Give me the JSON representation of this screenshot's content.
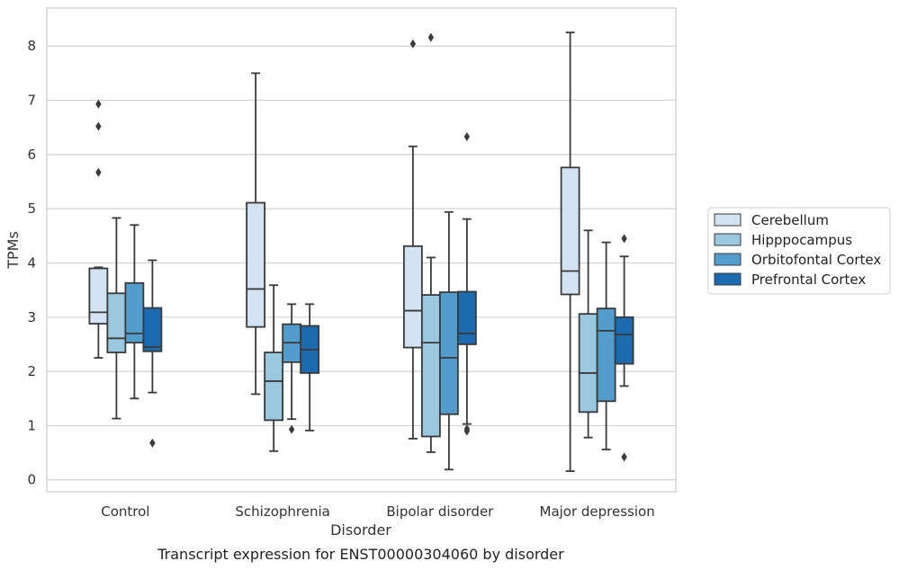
{
  "chart_data": {
    "type": "box",
    "caption": "Transcript expression for ENST00000304060 by disorder",
    "xlabel": "Disorder",
    "ylabel": "TPMs",
    "ylim": [
      -0.22,
      8.7
    ],
    "yticks": [
      0,
      1,
      2,
      3,
      4,
      5,
      6,
      7,
      8
    ],
    "grid": true,
    "legend_position": "right",
    "categories": [
      "Control",
      "Schizophrenia",
      "Bipolar disorder",
      "Major depression"
    ],
    "series": [
      {
        "name": "Cerebellum",
        "color": "#d3e3f3",
        "boxes": [
          {
            "whislo": 2.25,
            "q1": 2.88,
            "med": 3.09,
            "q3": 3.9,
            "whishi": 3.92,
            "fliers": [
              5.67,
              6.52,
              6.93
            ]
          },
          {
            "whislo": 1.58,
            "q1": 2.82,
            "med": 3.52,
            "q3": 5.11,
            "whishi": 7.5,
            "fliers": []
          },
          {
            "whislo": 0.76,
            "q1": 2.44,
            "med": 3.12,
            "q3": 4.31,
            "whishi": 6.15,
            "fliers": [
              8.04
            ]
          },
          {
            "whislo": 0.16,
            "q1": 3.42,
            "med": 3.85,
            "q3": 5.76,
            "whishi": 8.25,
            "fliers": []
          }
        ]
      },
      {
        "name": "Hipppocampus",
        "color": "#9ac8e0",
        "boxes": [
          {
            "whislo": 1.13,
            "q1": 2.35,
            "med": 2.61,
            "q3": 3.44,
            "whishi": 4.83,
            "fliers": []
          },
          {
            "whislo": 0.53,
            "q1": 1.1,
            "med": 1.82,
            "q3": 2.35,
            "whishi": 3.59,
            "fliers": []
          },
          {
            "whislo": 0.51,
            "q1": 0.8,
            "med": 2.53,
            "q3": 3.41,
            "whishi": 4.1,
            "fliers": [
              8.16
            ]
          },
          {
            "whislo": 0.78,
            "q1": 1.25,
            "med": 1.97,
            "q3": 3.06,
            "whishi": 4.6,
            "fliers": []
          }
        ]
      },
      {
        "name": "Orbitofontal Cortex",
        "color": "#529dcc",
        "boxes": [
          {
            "whislo": 1.5,
            "q1": 2.53,
            "med": 2.7,
            "q3": 3.63,
            "whishi": 4.7,
            "fliers": []
          },
          {
            "whislo": 1.12,
            "q1": 2.17,
            "med": 2.53,
            "q3": 2.87,
            "whishi": 3.24,
            "fliers": [
              0.93
            ]
          },
          {
            "whislo": 0.19,
            "q1": 1.21,
            "med": 2.25,
            "q3": 3.46,
            "whishi": 4.94,
            "fliers": []
          },
          {
            "whislo": 0.56,
            "q1": 1.45,
            "med": 2.75,
            "q3": 3.16,
            "whishi": 4.38,
            "fliers": []
          }
        ]
      },
      {
        "name": "Prefrontal Cortex",
        "color": "#1c6aaf",
        "boxes": [
          {
            "whislo": 1.61,
            "q1": 2.37,
            "med": 2.45,
            "q3": 3.17,
            "whishi": 4.05,
            "fliers": [
              0.68
            ]
          },
          {
            "whislo": 0.91,
            "q1": 1.97,
            "med": 2.4,
            "q3": 2.84,
            "whishi": 3.24,
            "fliers": []
          },
          {
            "whislo": 1.03,
            "q1": 2.5,
            "med": 2.7,
            "q3": 3.47,
            "whishi": 4.81,
            "fliers": [
              0.9,
              0.94,
              6.33
            ]
          },
          {
            "whislo": 1.73,
            "q1": 2.14,
            "med": 2.68,
            "q3": 3.0,
            "whishi": 4.12,
            "fliers": [
              4.45,
              0.42
            ]
          }
        ]
      }
    ]
  }
}
